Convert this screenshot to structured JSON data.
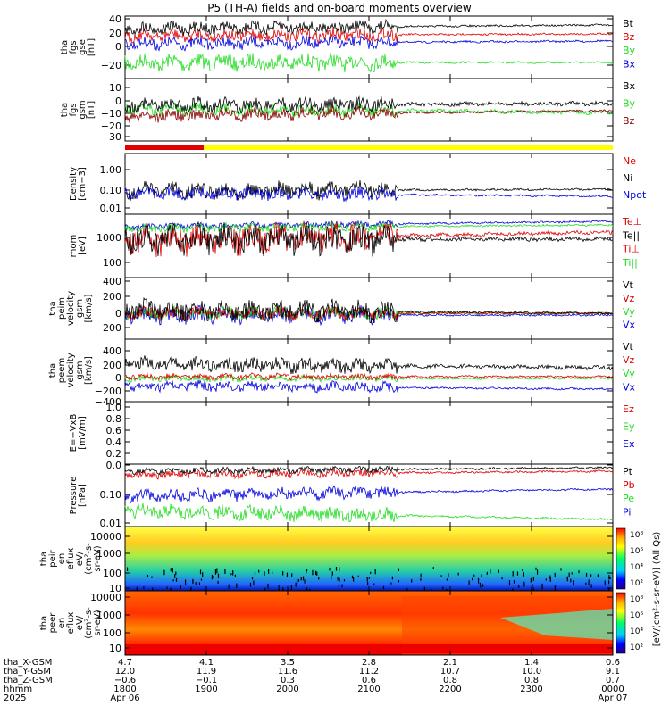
{
  "title": "P5 (TH-A) fields and on-board moments overview",
  "colors": {
    "black": "#000000",
    "red": "#e00000",
    "green": "#22dd22",
    "blue": "#0000dd",
    "yellow": "#ffff00",
    "darkred": "#8b0000"
  },
  "bars": {
    "red_label": "",
    "yellow_label": ""
  },
  "panels": [
    {
      "id": "fgs_gse",
      "ylabel": [
        "tha",
        "fgs",
        "gse",
        "[nT]"
      ],
      "ticks": [
        "40",
        "20",
        "0",
        "−20"
      ],
      "legend": [
        {
          "t": "Bt",
          "c": "black"
        },
        {
          "t": "Bz",
          "c": "red"
        },
        {
          "t": "By",
          "c": "green"
        },
        {
          "t": "Bx",
          "c": "blue"
        }
      ]
    },
    {
      "id": "fgs_gsm",
      "ylabel": [
        "tha",
        "fgs",
        "gsm",
        "[nT]"
      ],
      "ticks": [
        "10",
        "0",
        "−10",
        "−20",
        "−30"
      ],
      "legend": [
        {
          "t": "Bx",
          "c": "black"
        },
        {
          "t": "By",
          "c": "green"
        },
        {
          "t": "Bz",
          "c": "darkred"
        }
      ]
    },
    {
      "id": "density",
      "ylabel": [
        "Density",
        "[cm−3]"
      ],
      "ticks": [
        "1.00",
        "0.10",
        "0.01"
      ],
      "legend": [
        {
          "t": "Ne",
          "c": "red"
        },
        {
          "t": "Ni",
          "c": "black"
        },
        {
          "t": "Npot",
          "c": "blue"
        }
      ]
    },
    {
      "id": "temp",
      "ylabel": [
        "mom",
        "[eV]"
      ],
      "ticks": [
        "1000",
        "100"
      ],
      "legend": [
        {
          "t": "Te⊥",
          "c": "red"
        },
        {
          "t": "Te||",
          "c": "black"
        },
        {
          "t": "Ti⊥",
          "c": "red"
        },
        {
          "t": "Ti||",
          "c": "green"
        }
      ]
    },
    {
      "id": "peim",
      "ylabel": [
        "tha",
        "peim",
        "velocity",
        "gsm",
        "[km/s]"
      ],
      "ticks": [
        "400",
        "200",
        "0",
        "−200"
      ],
      "legend": [
        {
          "t": "Vt",
          "c": "black"
        },
        {
          "t": "Vz",
          "c": "red"
        },
        {
          "t": "Vy",
          "c": "green"
        },
        {
          "t": "Vx",
          "c": "blue"
        }
      ]
    },
    {
      "id": "peem",
      "ylabel": [
        "tha",
        "peem",
        "velocity",
        "gsm",
        "[km/s]"
      ],
      "ticks": [
        "400",
        "200",
        "0",
        "−200",
        "−400"
      ],
      "legend": [
        {
          "t": "Vt",
          "c": "black"
        },
        {
          "t": "Vz",
          "c": "red"
        },
        {
          "t": "Vy",
          "c": "green"
        },
        {
          "t": "Vx",
          "c": "blue"
        }
      ]
    },
    {
      "id": "efield",
      "ylabel": [
        "E=−VxB",
        "[mV/m]"
      ],
      "ticks": [
        "1.0",
        "0.8",
        "0.6",
        "0.4",
        "0.2",
        "0.0"
      ],
      "legend": [
        {
          "t": "Ez",
          "c": "red"
        },
        {
          "t": "Ey",
          "c": "green"
        },
        {
          "t": "Ex",
          "c": "blue"
        }
      ]
    },
    {
      "id": "pressure",
      "ylabel": [
        "Pressure",
        "[nPa]"
      ],
      "ticks": [
        "0.10",
        "0.01"
      ],
      "legend": [
        {
          "t": "Pt",
          "c": "black"
        },
        {
          "t": "Pb",
          "c": "red"
        },
        {
          "t": "Pe",
          "c": "green"
        },
        {
          "t": "Pi",
          "c": "blue"
        }
      ]
    },
    {
      "id": "peir",
      "ylabel": [
        "tha",
        "peir",
        "en",
        "eflux",
        "eV/",
        "(cm²-s-",
        "sr-eV)"
      ],
      "ticks": [
        "10000",
        "1000",
        "100",
        "10"
      ],
      "legend": []
    },
    {
      "id": "peer",
      "ylabel": [
        "tha",
        "peer",
        "en",
        "eflux",
        "eV/",
        "(cm²-s-",
        "sr-eV)"
      ],
      "ticks": [
        "10000",
        "1000",
        "100",
        "10"
      ],
      "legend": []
    }
  ],
  "colorbar": {
    "label": "[eV/(cm²-s-sr-eV)] (All Qs)",
    "ticks_top": [
      "10⁸",
      "10⁶",
      "10⁴",
      "10²"
    ],
    "ticks_bottom": [
      "10⁸",
      "10⁶",
      "10⁴",
      "10²"
    ]
  },
  "footer": {
    "row_labels": [
      "tha_X-GSM",
      "tha_Y-GSM",
      "tha_Z-GSM",
      "hhmm",
      "2025"
    ],
    "columns": [
      {
        "x": "4.7",
        "y": "12.0",
        "z": "−0.6",
        "hhmm": "1800",
        "date": "Apr 06"
      },
      {
        "x": "4.1",
        "y": "11.9",
        "z": "−0.1",
        "hhmm": "1900",
        "date": ""
      },
      {
        "x": "3.5",
        "y": "11.6",
        "z": "0.3",
        "hhmm": "2000",
        "date": ""
      },
      {
        "x": "2.8",
        "y": "11.2",
        "z": "0.6",
        "hhmm": "2100",
        "date": ""
      },
      {
        "x": "2.1",
        "y": "10.7",
        "z": "0.8",
        "hhmm": "2200",
        "date": ""
      },
      {
        "x": "1.4",
        "y": "10.0",
        "z": "0.8",
        "hhmm": "2300",
        "date": ""
      },
      {
        "x": "0.6",
        "y": "9.1",
        "z": "0.7",
        "hhmm": "0000",
        "date": "Apr 07"
      }
    ]
  },
  "chart_data": {
    "type": "line",
    "title": "P5 (TH-A) fields and on-board moments overview",
    "x_ticks": [
      "1800",
      "1900",
      "2000",
      "2100",
      "2200",
      "2300",
      "0000"
    ],
    "x_range": [
      "2025-04-06 18:00",
      "2025-04-07 00:00"
    ],
    "panels": [
      {
        "name": "fgs_gse",
        "ylim": [
          -35,
          42
        ],
        "series": [
          {
            "name": "Bt",
            "values_at_ticks": [
              22,
              30,
              22,
              25,
              35,
              35,
              35
            ]
          },
          {
            "name": "Bz",
            "values_at_ticks": [
              15,
              22,
              12,
              10,
              28,
              32,
              33
            ]
          },
          {
            "name": "By",
            "values_at_ticks": [
              -18,
              -20,
              -15,
              -10,
              -16,
              -18,
              -22
            ]
          },
          {
            "name": "Bx",
            "values_at_ticks": [
              8,
              10,
              5,
              5,
              3,
              3,
              5
            ]
          }
        ]
      },
      {
        "name": "fgs_gsm",
        "ylim": [
          -38,
          13
        ],
        "series": [
          {
            "name": "Bx",
            "values_at_ticks": [
              -3,
              5,
              -5,
              0,
              -2,
              -3,
              -3
            ]
          },
          {
            "name": "By",
            "values_at_ticks": [
              -2,
              -3,
              -5,
              -4,
              -1,
              -3,
              -2
            ]
          },
          {
            "name": "Bz",
            "values_at_ticks": [
              -12,
              -8,
              -15,
              -14,
              -8,
              -6,
              -5
            ]
          }
        ]
      },
      {
        "name": "density",
        "ylim": [
          0.005,
          3
        ],
        "log": true,
        "series": [
          {
            "name": "Ni",
            "values_at_ticks": [
              0.12,
              0.6,
              0.2,
              0.15,
              0.1,
              0.1,
              0.12
            ]
          },
          {
            "name": "Npot",
            "values_at_ticks": [
              0.1,
              0.5,
              0.15,
              0.12,
              0.08,
              0.06,
              0.05
            ]
          }
        ]
      },
      {
        "name": "temp",
        "ylim": [
          30,
          5000
        ],
        "log": true,
        "series": [
          {
            "name": "Te||",
            "values_at_ticks": [
              1200,
              900,
              1000,
              1200,
              2500,
              1500,
              800
            ]
          },
          {
            "name": "Ti||",
            "values_at_ticks": [
              2200,
              2200,
              2200,
              2200,
              3000,
              3000,
              3000
            ]
          }
        ]
      },
      {
        "name": "peim",
        "ylim": [
          -300,
          450
        ],
        "series": [
          {
            "name": "Vt",
            "values_at_ticks": [
              60,
              80,
              50,
              50,
              15,
              10,
              10
            ]
          }
        ]
      },
      {
        "name": "peem",
        "ylim": [
          -450,
          500
        ],
        "series": [
          {
            "name": "Vt",
            "values_at_ticks": [
              60,
              80,
              50,
              70,
              40,
              20,
              20
            ]
          }
        ]
      },
      {
        "name": "pressure",
        "ylim": [
          0.007,
          0.5
        ],
        "log": true,
        "series": [
          {
            "name": "Pt",
            "values_at_ticks": [
              0.2,
              0.28,
              0.2,
              0.3,
              0.35,
              0.4,
              0.4
            ]
          },
          {
            "name": "Pb",
            "values_at_ticks": [
              0.18,
              0.25,
              0.18,
              0.22,
              0.3,
              0.35,
              0.38
            ]
          },
          {
            "name": "Pe",
            "values_at_ticks": [
              0.02,
              0.03,
              0.02,
              0.03,
              0.05,
              0.02,
              0.02
            ]
          },
          {
            "name": "Pi",
            "values_at_ticks": [
              0.04,
              0.05,
              0.05,
              0.05,
              0.06,
              0.08,
              0.12
            ]
          }
        ]
      }
    ]
  }
}
